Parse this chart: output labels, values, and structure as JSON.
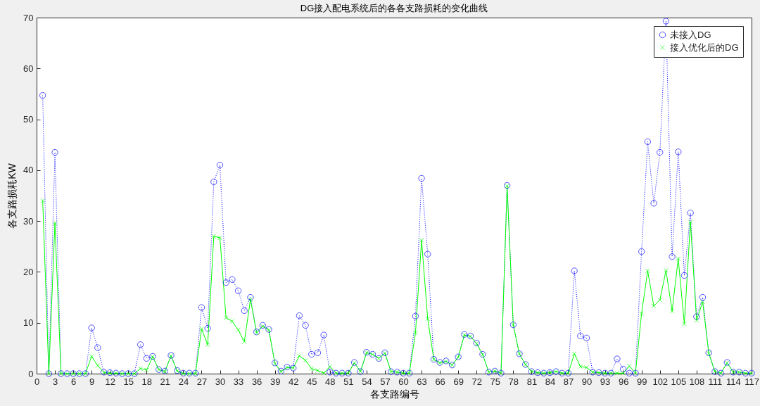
{
  "chart_data": {
    "type": "line",
    "title": "DG接入配电系统后的各各支路损耗的变化曲线",
    "xlabel": "各支路编号",
    "ylabel": "各支路损耗KW",
    "x": [
      1,
      2,
      3,
      4,
      5,
      6,
      7,
      8,
      9,
      10,
      11,
      12,
      13,
      14,
      15,
      16,
      17,
      18,
      19,
      20,
      21,
      22,
      23,
      24,
      25,
      26,
      27,
      28,
      29,
      30,
      31,
      32,
      33,
      34,
      35,
      36,
      37,
      38,
      39,
      40,
      41,
      42,
      43,
      44,
      45,
      46,
      47,
      48,
      49,
      50,
      51,
      52,
      53,
      54,
      55,
      56,
      57,
      58,
      59,
      60,
      61,
      62,
      63,
      64,
      65,
      66,
      67,
      68,
      69,
      70,
      71,
      72,
      73,
      74,
      75,
      76,
      77,
      78,
      79,
      80,
      81,
      82,
      83,
      84,
      85,
      86,
      87,
      88,
      89,
      90,
      91,
      92,
      93,
      94,
      95,
      96,
      97,
      98,
      99,
      100,
      101,
      102,
      103,
      104,
      105,
      106,
      107,
      108,
      109,
      110,
      111,
      112,
      113,
      114,
      115,
      116,
      117
    ],
    "xlim": [
      0,
      117
    ],
    "xticks": [
      0,
      3,
      6,
      9,
      12,
      15,
      18,
      21,
      24,
      27,
      30,
      33,
      36,
      39,
      42,
      45,
      48,
      51,
      54,
      57,
      60,
      63,
      66,
      69,
      72,
      75,
      78,
      81,
      84,
      87,
      90,
      93,
      96,
      99,
      102,
      105,
      108,
      111,
      114,
      117
    ],
    "ylim": [
      0,
      70
    ],
    "yticks": [
      0,
      10,
      20,
      30,
      40,
      50,
      60,
      70
    ],
    "legend": "top right",
    "series": [
      {
        "name": "未接入DG",
        "color": "#0000ff",
        "marker": "circle",
        "line_style": "dotted",
        "values": [
          54.7,
          0,
          43.5,
          0,
          0,
          0,
          0,
          0,
          9,
          5.1,
          0.3,
          0.2,
          0.1,
          0,
          0,
          0,
          5.7,
          3,
          3.4,
          0.8,
          0.5,
          3.6,
          0.6,
          0.1,
          0.1,
          0.1,
          13,
          8.9,
          37.7,
          41,
          17.9,
          18.5,
          16.3,
          12.4,
          15,
          8.2,
          9.5,
          8.7,
          2.1,
          0.5,
          1.3,
          1.1,
          11.4,
          9.5,
          3.8,
          4.1,
          7.6,
          0.3,
          0.1,
          0.1,
          0.1,
          2.2,
          0.4,
          4.2,
          3.8,
          3,
          4.1,
          0.4,
          0.3,
          0.1,
          0.1,
          11.3,
          38.4,
          23.5,
          2.8,
          2.2,
          2.5,
          1.7,
          3.3,
          7.7,
          7.4,
          6,
          3.8,
          0.3,
          0.5,
          0.1,
          37,
          9.6,
          3.9,
          1.8,
          0.4,
          0.2,
          0.1,
          0.2,
          0.4,
          0.1,
          0.1,
          20.2,
          7.4,
          7,
          0.3,
          0.2,
          0.1,
          0.1,
          2.9,
          0.9,
          0.1,
          0.1,
          24,
          45.6,
          33.5,
          43.5,
          69.3,
          23,
          43.6,
          19.3,
          31.6,
          11.2,
          15,
          4.1,
          0.4,
          0.1,
          2.2,
          0.3,
          0.3,
          0.1,
          0.1
        ]
      },
      {
        "name": "接入优化后的DG",
        "color": "#00ff00",
        "marker": "cross",
        "line_style": "solid",
        "values": [
          34,
          0,
          29.6,
          0,
          0,
          0,
          0,
          0,
          3.4,
          1.6,
          0.2,
          0.1,
          0.1,
          0,
          0,
          0,
          1,
          0.7,
          3.3,
          0.8,
          0.4,
          3.5,
          0.5,
          0,
          0,
          0,
          8.8,
          5.7,
          27,
          26.7,
          11,
          10.3,
          8.6,
          6.3,
          14.6,
          8,
          9.3,
          8.6,
          2,
          0.4,
          1.2,
          1.1,
          3.5,
          2.6,
          1,
          0.6,
          0.1,
          1.4,
          0.1,
          0.1,
          0.1,
          2.1,
          0.4,
          4.1,
          3.8,
          3,
          4,
          0.4,
          0.3,
          0.1,
          0.1,
          8,
          26.2,
          10.8,
          2.8,
          2.1,
          2.4,
          1.7,
          3.2,
          7.6,
          7.3,
          5.9,
          3.7,
          0.3,
          0.5,
          0.1,
          36.9,
          9.6,
          3.9,
          1.8,
          0.4,
          0.2,
          0.1,
          0.2,
          0.4,
          0.1,
          0.1,
          3.9,
          1.4,
          1.2,
          0.3,
          0.2,
          0.1,
          0.1,
          0.1,
          0.1,
          1.5,
          0.1,
          11.8,
          20.2,
          13.3,
          14.5,
          20.3,
          12.3,
          22.6,
          9.8,
          29.8,
          10.5,
          14.1,
          4,
          0.4,
          0.1,
          2.1,
          0.3,
          0.3,
          0.1,
          0.1
        ]
      }
    ]
  }
}
